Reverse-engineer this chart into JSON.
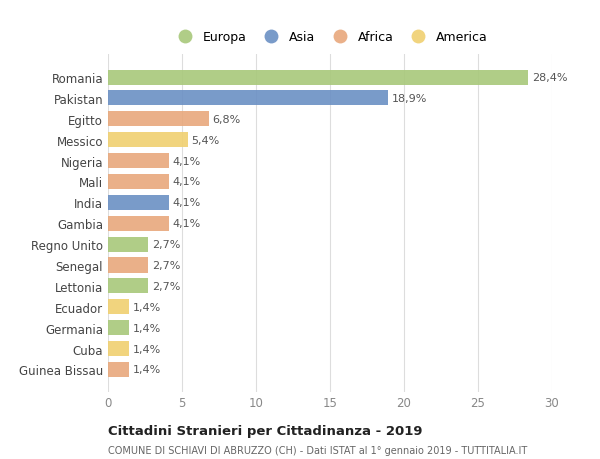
{
  "countries": [
    "Romania",
    "Pakistan",
    "Egitto",
    "Messico",
    "Nigeria",
    "Mali",
    "India",
    "Gambia",
    "Regno Unito",
    "Senegal",
    "Lettonia",
    "Ecuador",
    "Germania",
    "Cuba",
    "Guinea Bissau"
  ],
  "values": [
    28.4,
    18.9,
    6.8,
    5.4,
    4.1,
    4.1,
    4.1,
    4.1,
    2.7,
    2.7,
    2.7,
    1.4,
    1.4,
    1.4,
    1.4
  ],
  "labels": [
    "28,4%",
    "18,9%",
    "6,8%",
    "5,4%",
    "4,1%",
    "4,1%",
    "4,1%",
    "4,1%",
    "2,7%",
    "2,7%",
    "2,7%",
    "1,4%",
    "1,4%",
    "1,4%",
    "1,4%"
  ],
  "continents": [
    "Europa",
    "Asia",
    "Africa",
    "America",
    "Africa",
    "Africa",
    "Asia",
    "Africa",
    "Europa",
    "Africa",
    "Europa",
    "America",
    "Europa",
    "America",
    "Africa"
  ],
  "colors": {
    "Europa": "#a8c87a",
    "Asia": "#6b90c4",
    "Africa": "#e8a87c",
    "America": "#f0d070"
  },
  "xlim": [
    0,
    30
  ],
  "xticks": [
    0,
    5,
    10,
    15,
    20,
    25,
    30
  ],
  "title": "Cittadini Stranieri per Cittadinanza - 2019",
  "subtitle": "COMUNE DI SCHIAVI DI ABRUZZO (CH) - Dati ISTAT al 1° gennaio 2019 - TUTTITALIA.IT",
  "background_color": "#ffffff",
  "grid_color": "#dddddd",
  "bar_height": 0.72,
  "figsize": [
    6.0,
    4.6
  ],
  "dpi": 100,
  "legend_order": [
    "Europa",
    "Asia",
    "Africa",
    "America"
  ]
}
